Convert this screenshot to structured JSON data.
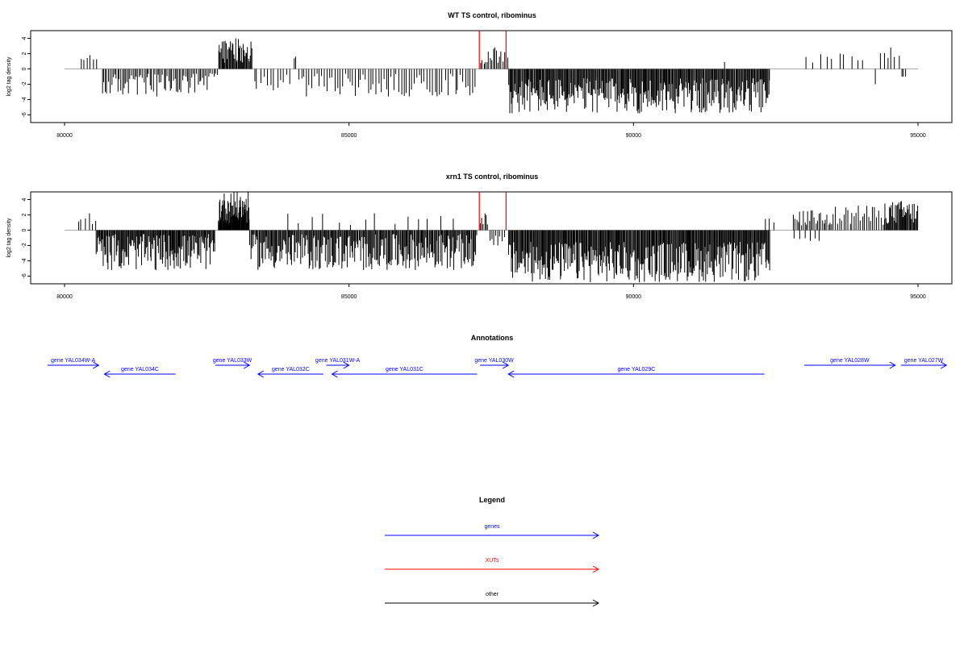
{
  "chart_data": [
    {
      "type": "bar",
      "title": "WT TS control, ribominus",
      "ylabel": "log2 tag density",
      "xlim": [
        80000,
        95000
      ],
      "ylim": [
        -7,
        5
      ],
      "x_ticks": [
        80000,
        85000,
        90000,
        95000
      ],
      "y_ticks": [
        -6,
        -4,
        -2,
        0,
        2,
        4
      ],
      "baseline_range": [
        80000,
        95000
      ],
      "series": [
        {
          "color": "#000000",
          "regions": [
            {
              "start": 80250,
              "end": 80600,
              "count": 6,
              "min": 0.8,
              "max": 1.8
            },
            {
              "start": 80650,
              "end": 82550,
              "count": 70,
              "min": -3.6,
              "max": -0.6
            },
            {
              "start": 82550,
              "end": 82700,
              "count": 5,
              "min": -1.0,
              "max": -0.4
            },
            {
              "start": 82700,
              "end": 83300,
              "count": 40,
              "min": 0.8,
              "max": 4.0
            },
            {
              "start": 83300,
              "end": 84000,
              "count": 12,
              "min": -2.8,
              "max": -0.6
            },
            {
              "start": 84000,
              "end": 84100,
              "count": 2,
              "min": 1.2,
              "max": 1.6
            },
            {
              "start": 84100,
              "end": 87250,
              "count": 70,
              "min": -3.6,
              "max": -0.6
            },
            {
              "start": 87300,
              "end": 87800,
              "count": 18,
              "min": 0.6,
              "max": 2.8
            },
            {
              "start": 87800,
              "end": 92400,
              "count": 300,
              "min": -5.8,
              "max": -1.2
            },
            {
              "start": 91580,
              "end": 91620,
              "count": 1,
              "min": 0.9,
              "max": 0.9
            },
            {
              "start": 93000,
              "end": 94100,
              "count": 10,
              "min": 0.8,
              "max": 2.0
            },
            {
              "start": 94200,
              "end": 94300,
              "count": 1,
              "min": -2.0,
              "max": -2.0
            },
            {
              "start": 94300,
              "end": 94700,
              "count": 6,
              "min": 0.8,
              "max": 2.8
            },
            {
              "start": 94700,
              "end": 94800,
              "count": 3,
              "min": -1.0,
              "max": -1.0
            }
          ]
        },
        {
          "color": "#ff0000",
          "bars": [
            {
              "x": 87290,
              "y": 5.0
            },
            {
              "x": 87760,
              "y": 5.0
            }
          ]
        }
      ]
    },
    {
      "type": "bar",
      "title": "xrn1 TS control, ribominus",
      "ylabel": "log2 tag density",
      "xlim": [
        80000,
        95000
      ],
      "ylim": [
        -7,
        5
      ],
      "x_ticks": [
        80000,
        85000,
        90000,
        95000
      ],
      "y_ticks": [
        -6,
        -4,
        -2,
        0,
        2,
        4
      ],
      "baseline_range": [
        80000,
        95000
      ],
      "series": [
        {
          "color": "#000000",
          "regions": [
            {
              "start": 80200,
              "end": 80600,
              "count": 6,
              "min": 0.8,
              "max": 2.2
            },
            {
              "start": 80550,
              "end": 82650,
              "count": 150,
              "min": -5.2,
              "max": -0.5
            },
            {
              "start": 82700,
              "end": 83250,
              "count": 60,
              "min": 0.8,
              "max": 5.0
            },
            {
              "start": 83250,
              "end": 87250,
              "count": 250,
              "min": -5.2,
              "max": -0.5
            },
            {
              "start": 83800,
              "end": 87000,
              "count": 14,
              "min": 0.6,
              "max": 2.2
            },
            {
              "start": 87300,
              "end": 87450,
              "count": 6,
              "min": 0.6,
              "max": 2.2
            },
            {
              "start": 87450,
              "end": 87750,
              "count": 8,
              "min": -2.0,
              "max": -0.5
            },
            {
              "start": 87800,
              "end": 92400,
              "count": 320,
              "min": -6.8,
              "max": -1.5
            },
            {
              "start": 92300,
              "end": 92500,
              "count": 3,
              "min": 0.8,
              "max": 1.5
            },
            {
              "start": 92800,
              "end": 93500,
              "count": 25,
              "min": 0.6,
              "max": 2.6
            },
            {
              "start": 92800,
              "end": 93300,
              "count": 6,
              "min": -1.4,
              "max": -0.4
            },
            {
              "start": 93500,
              "end": 94400,
              "count": 25,
              "min": 0.6,
              "max": 3.2
            },
            {
              "start": 94400,
              "end": 95000,
              "count": 40,
              "min": 0.8,
              "max": 3.8
            }
          ]
        },
        {
          "color": "#ff0000",
          "bars": [
            {
              "x": 87290,
              "y": 5.0
            },
            {
              "x": 87760,
              "y": 5.0
            }
          ]
        }
      ]
    }
  ],
  "annotations": {
    "title": "Annotations",
    "xlim": [
      80000,
      95000
    ],
    "genes": [
      {
        "label": "gene YAL034W-A",
        "start": 79700,
        "end": 80600,
        "strand": "+",
        "row": 1
      },
      {
        "label": "gene YAL034C",
        "start": 81950,
        "end": 80700,
        "strand": "-",
        "row": 2
      },
      {
        "label": "gene YAL033W",
        "start": 82650,
        "end": 83250,
        "strand": "+",
        "row": 1
      },
      {
        "label": "gene YAL032C",
        "start": 84550,
        "end": 83400,
        "strand": "-",
        "row": 2
      },
      {
        "label": "gene YAL031W-A",
        "start": 84600,
        "end": 85000,
        "strand": "+",
        "row": 1
      },
      {
        "label": "gene YAL031C",
        "start": 87250,
        "end": 84700,
        "strand": "-",
        "row": 2
      },
      {
        "label": "gene YAL030W",
        "start": 87300,
        "end": 87800,
        "strand": "+",
        "row": 1
      },
      {
        "label": "gene YAL029C",
        "start": 92300,
        "end": 87800,
        "strand": "-",
        "row": 2
      },
      {
        "label": "gene YAL028W",
        "start": 93000,
        "end": 94600,
        "strand": "+",
        "row": 1
      },
      {
        "label": "gene YAL027W",
        "start": 94700,
        "end": 95500,
        "strand": "+",
        "row": 1
      }
    ]
  },
  "legend": {
    "title": "Legend",
    "items": [
      {
        "label": "genes",
        "color": "#0000ff"
      },
      {
        "label": "XUTs",
        "color": "#ff0000"
      },
      {
        "label": "other",
        "color": "#000000"
      }
    ]
  }
}
